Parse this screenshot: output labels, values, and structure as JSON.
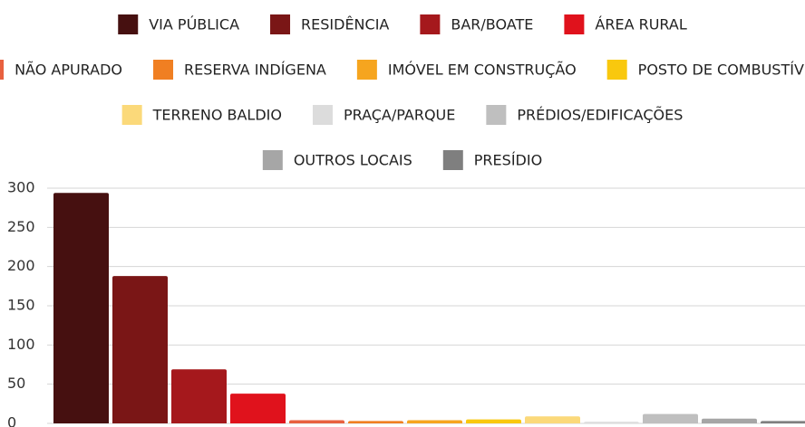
{
  "chart_data": {
    "type": "bar",
    "series": [
      {
        "name": "VIA PÚBLICA",
        "color": "#461010",
        "values": [
          294
        ]
      },
      {
        "name": "RESIDÊNCIA",
        "color": "#7a1616",
        "values": [
          188
        ]
      },
      {
        "name": "BAR/BOATE",
        "color": "#a5181c",
        "values": [
          69
        ]
      },
      {
        "name": "ÁREA RURAL",
        "color": "#e0121c",
        "values": [
          38
        ]
      },
      {
        "name": "NÃO APURADO",
        "color": "#e8613f",
        "values": [
          4
        ]
      },
      {
        "name": "RESERVA INDÍGENA",
        "color": "#f07f22",
        "values": [
          3
        ]
      },
      {
        "name": "IMÓVEL EM CONSTRUÇÃO",
        "color": "#f6a51f",
        "values": [
          4
        ]
      },
      {
        "name": "POSTO DE COMBUSTÍVEL",
        "color": "#f9c80e",
        "values": [
          5
        ]
      },
      {
        "name": "TERRENO BALDIO",
        "color": "#fbd97a",
        "values": [
          9
        ]
      },
      {
        "name": "PRAÇA/PARQUE",
        "color": "#dcdcdc",
        "values": [
          2
        ]
      },
      {
        "name": "PRÉDIOS/EDIFICAÇÕES",
        "color": "#bfbfbf",
        "values": [
          12
        ]
      },
      {
        "name": "OUTROS LOCAIS",
        "color": "#a6a6a6",
        "values": [
          6
        ]
      },
      {
        "name": "PRESÍDIO",
        "color": "#7f7f7f",
        "values": [
          3
        ]
      }
    ],
    "ylim": [
      0,
      300
    ],
    "yticks": [
      0,
      50,
      100,
      150,
      200,
      250,
      300
    ],
    "grid": true
  }
}
